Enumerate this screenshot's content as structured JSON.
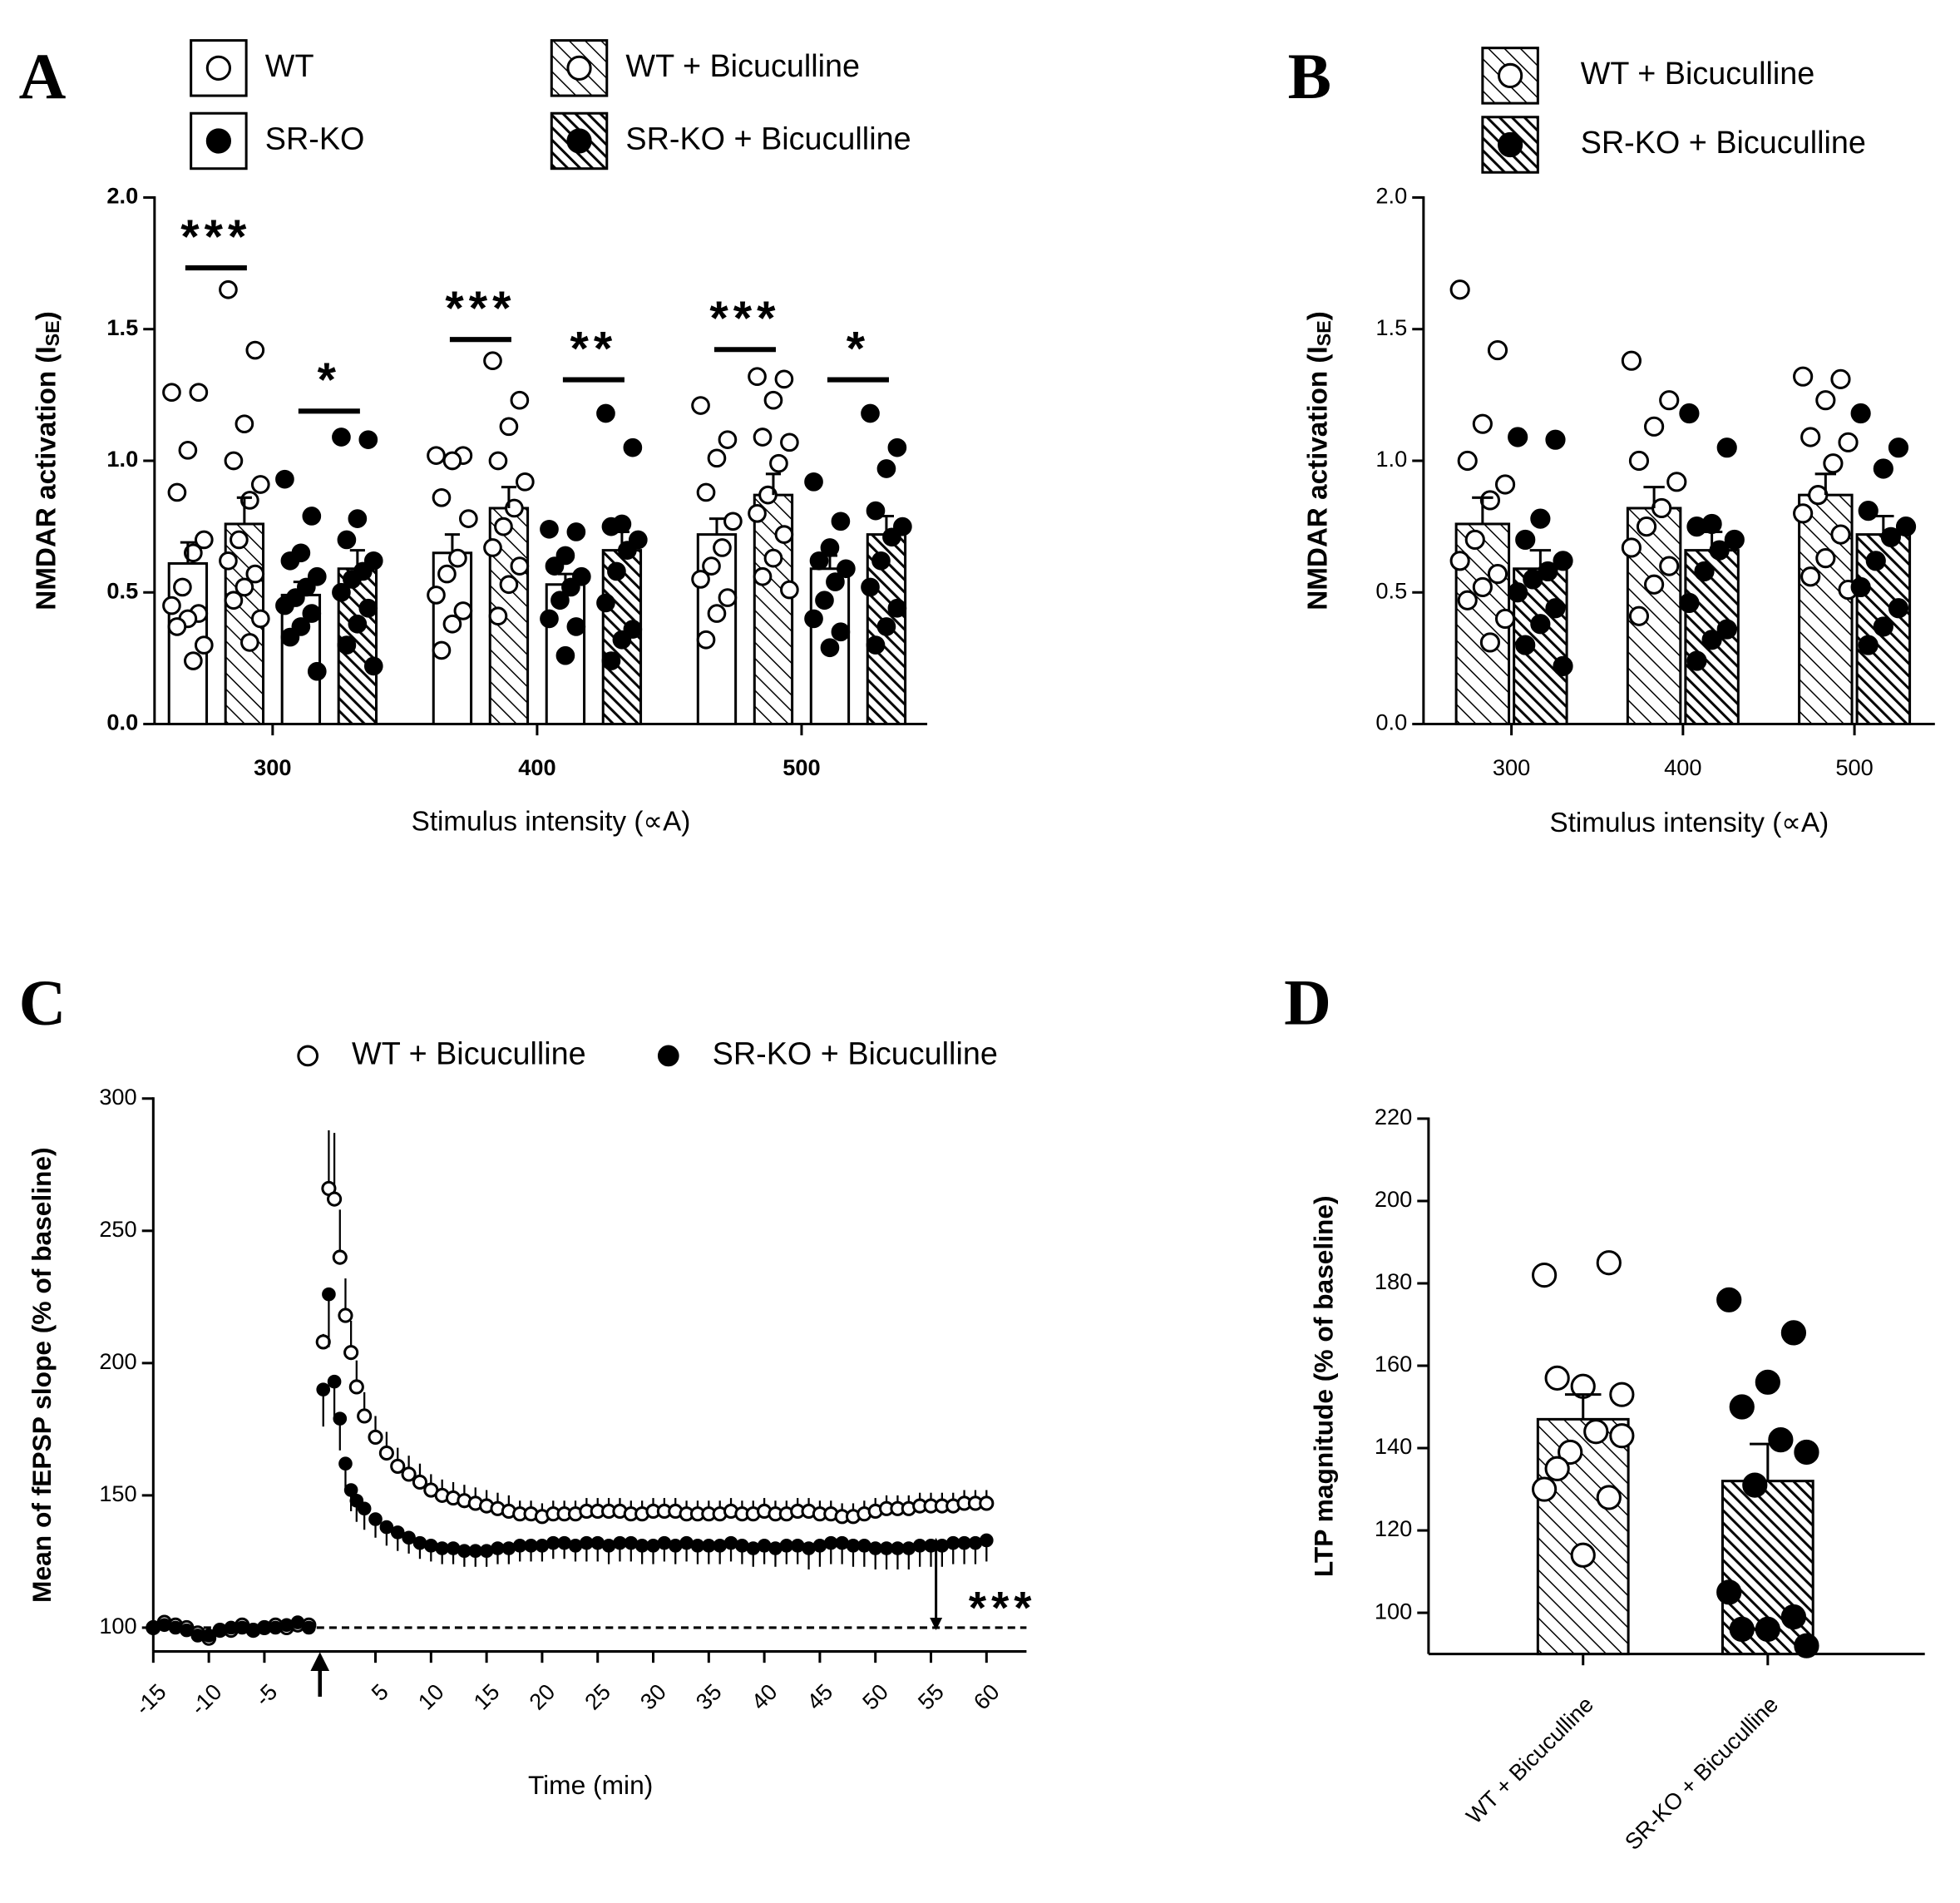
{
  "chart_data": [
    {
      "panel": "A",
      "type": "bar",
      "y_label": {
        "text": "NMDAR activation (I",
        "sub": "SE",
        "end": ")"
      },
      "x_label": "Stimulus intensity (∝A)",
      "categories": [
        "300",
        "400",
        "500"
      ],
      "ylim": [
        0,
        2
      ],
      "yticks": [
        {
          "value": 0,
          "label": "0.0"
        },
        0.5,
        {
          "value": 1,
          "label": "1.0"
        },
        1.5,
        {
          "value": 2,
          "label": "2.0"
        }
      ],
      "series": [
        {
          "name": "WT",
          "fill": "white",
          "marker": "open",
          "values": [
            0.61,
            0.65,
            0.72
          ],
          "errors": [
            0.08,
            0.07,
            0.06
          ],
          "points": [
            [
              1.26,
              1.26,
              1.04,
              0.88,
              0.7,
              0.65,
              0.52,
              0.45,
              0.42,
              0.4,
              0.37,
              0.3,
              0.24
            ],
            [
              1.02,
              1.02,
              1.0,
              0.86,
              0.78,
              0.63,
              0.57,
              0.49,
              0.43,
              0.38,
              0.28
            ],
            [
              1.21,
              1.08,
              1.01,
              0.88,
              0.77,
              0.67,
              0.6,
              0.55,
              0.48,
              0.42,
              0.32
            ]
          ]
        },
        {
          "name": "WT + Bicuculline",
          "fill": "sparse-hatch",
          "marker": "open",
          "values": [
            0.76,
            0.82,
            0.87
          ],
          "errors": [
            0.1,
            0.08,
            0.08
          ],
          "points": [
            [
              1.65,
              1.42,
              1.14,
              1.0,
              0.91,
              0.85,
              0.7,
              0.62,
              0.57,
              0.52,
              0.47,
              0.4,
              0.31
            ],
            [
              1.38,
              1.23,
              1.13,
              1.0,
              0.92,
              0.82,
              0.75,
              0.67,
              0.6,
              0.53,
              0.41
            ],
            [
              1.32,
              1.31,
              1.23,
              1.09,
              1.07,
              0.99,
              0.87,
              0.8,
              0.72,
              0.63,
              0.56,
              0.51
            ]
          ]
        },
        {
          "name": "SR-KO",
          "fill": "white",
          "marker": "filled",
          "values": [
            0.49,
            0.53,
            0.59
          ],
          "errors": [
            0.05,
            0.04,
            0.05
          ],
          "points": [
            [
              0.93,
              0.79,
              0.65,
              0.62,
              0.56,
              0.52,
              0.48,
              0.45,
              0.42,
              0.37,
              0.33,
              0.2
            ],
            [
              0.74,
              0.73,
              0.64,
              0.6,
              0.56,
              0.52,
              0.47,
              0.4,
              0.37,
              0.26
            ],
            [
              0.92,
              0.77,
              0.67,
              0.62,
              0.59,
              0.54,
              0.47,
              0.4,
              0.35,
              0.29
            ]
          ]
        },
        {
          "name": "SR-KO + Bicuculline",
          "fill": "dense-hatch",
          "marker": "filled",
          "values": [
            0.59,
            0.66,
            0.72
          ],
          "errors": [
            0.07,
            0.07,
            0.07
          ],
          "points": [
            [
              1.09,
              1.08,
              0.78,
              0.7,
              0.62,
              0.58,
              0.55,
              0.5,
              0.44,
              0.38,
              0.3,
              0.22
            ],
            [
              1.18,
              1.05,
              0.76,
              0.75,
              0.7,
              0.66,
              0.58,
              0.46,
              0.36,
              0.32,
              0.24
            ],
            [
              1.18,
              1.05,
              0.97,
              0.81,
              0.75,
              0.71,
              0.62,
              0.52,
              0.44,
              0.37,
              0.3
            ]
          ]
        }
      ],
      "annotations": [
        "***",
        "*",
        "***",
        "**",
        "***",
        "*"
      ]
    },
    {
      "panel": "B",
      "type": "bar",
      "y_label": {
        "text": "NMDAR activation (I",
        "sub": "SE",
        "end": ")"
      },
      "x_label": "Stimulus intensity (∝A)",
      "categories": [
        "300",
        "400",
        "500"
      ],
      "ylim": [
        0,
        2
      ],
      "yticks": [
        {
          "value": 0,
          "label": "0.0"
        },
        0.5,
        {
          "value": 1,
          "label": "1.0"
        },
        1.5,
        {
          "value": 2,
          "label": "2.0"
        }
      ],
      "series": [
        {
          "name": "WT + Bicuculline",
          "fill": "sparse-hatch",
          "marker": "open",
          "values": [
            0.76,
            0.82,
            0.87
          ],
          "errors": [
            0.1,
            0.08,
            0.08
          ],
          "points": [
            [
              1.65,
              1.42,
              1.14,
              1.0,
              0.91,
              0.85,
              0.7,
              0.62,
              0.57,
              0.52,
              0.47,
              0.4,
              0.31
            ],
            [
              1.38,
              1.23,
              1.13,
              1.0,
              0.92,
              0.82,
              0.75,
              0.67,
              0.6,
              0.53,
              0.41
            ],
            [
              1.32,
              1.31,
              1.23,
              1.09,
              1.07,
              0.99,
              0.87,
              0.8,
              0.72,
              0.63,
              0.56,
              0.51
            ]
          ]
        },
        {
          "name": "SR-KO + Bicuculline",
          "fill": "dense-hatch",
          "marker": "filled",
          "values": [
            0.59,
            0.66,
            0.72
          ],
          "errors": [
            0.07,
            0.07,
            0.07
          ],
          "points": [
            [
              1.09,
              1.08,
              0.78,
              0.7,
              0.62,
              0.58,
              0.55,
              0.5,
              0.44,
              0.38,
              0.3,
              0.22
            ],
            [
              1.18,
              1.05,
              0.76,
              0.75,
              0.7,
              0.66,
              0.58,
              0.46,
              0.36,
              0.32,
              0.24
            ],
            [
              1.18,
              1.05,
              0.97,
              0.81,
              0.75,
              0.71,
              0.62,
              0.52,
              0.44,
              0.37,
              0.3
            ]
          ]
        }
      ]
    },
    {
      "panel": "C",
      "type": "scatter",
      "y_label": "Mean of fEPSP slope (% of baseline)",
      "x_label": "Time (min)",
      "xlim": [
        -15,
        63.6
      ],
      "xticks": [
        -15,
        -10,
        -5,
        5,
        10,
        15,
        20,
        25,
        30,
        35,
        40,
        45,
        50,
        55,
        60
      ],
      "ylim": [
        91,
        300
      ],
      "yticks": [
        100,
        150,
        200,
        250,
        300
      ],
      "reference_line": 100,
      "stimulus_time": 0,
      "annotation": "***",
      "x": [
        -15,
        -14,
        -13,
        -12,
        -11,
        -10,
        -9,
        -8,
        -7,
        -6,
        -5,
        -4,
        -3,
        -2,
        -1,
        0.3,
        0.8,
        1.3,
        1.8,
        2.3,
        2.8,
        3.3,
        4,
        5,
        6,
        7,
        8,
        9,
        10,
        11,
        12,
        13,
        14,
        15,
        16,
        17,
        18,
        19,
        20,
        21,
        22,
        23,
        24,
        25,
        26,
        27,
        28,
        29,
        30,
        31,
        32,
        33,
        34,
        35,
        36,
        37,
        38,
        39,
        40,
        41,
        42,
        43,
        44,
        45,
        46,
        47,
        48,
        49,
        50,
        51,
        52,
        53,
        54,
        55,
        56,
        57,
        58,
        59,
        60
      ],
      "series": [
        {
          "name": "WT + Bicuculline",
          "marker": "open",
          "values": [
            100,
            102,
            101,
            100,
            98,
            96,
            99,
            99,
            101,
            99,
            100,
            101,
            100,
            101,
            101,
            208,
            266,
            262,
            240,
            218,
            204,
            191,
            180,
            172,
            166,
            161,
            158,
            155,
            152,
            150,
            149,
            148,
            147,
            146,
            145,
            144,
            143,
            143,
            142,
            143,
            143,
            143,
            144,
            144,
            144,
            144,
            143,
            143,
            144,
            144,
            144,
            143,
            143,
            143,
            143,
            144,
            143,
            143,
            144,
            143,
            143,
            144,
            144,
            143,
            143,
            142,
            142,
            143,
            144,
            145,
            145,
            145,
            146,
            146,
            146,
            146,
            147,
            147,
            147
          ],
          "errors": [
            2,
            2,
            2,
            2,
            2,
            2,
            2,
            2,
            2,
            2,
            2,
            2,
            2,
            2,
            2,
            3,
            22,
            25,
            18,
            14,
            12,
            10,
            9,
            8,
            8,
            7,
            7,
            7,
            6,
            6,
            6,
            6,
            6,
            6,
            6,
            6,
            5,
            5,
            5,
            5,
            5,
            5,
            5,
            5,
            5,
            5,
            5,
            5,
            5,
            5,
            5,
            5,
            5,
            5,
            5,
            5,
            5,
            5,
            5,
            5,
            5,
            5,
            5,
            5,
            5,
            5,
            5,
            5,
            5,
            5,
            5,
            5,
            5,
            5,
            5,
            5,
            5,
            5,
            5
          ]
        },
        {
          "name": "SR-KO + Bicuculline",
          "marker": "filled",
          "values": [
            100,
            101,
            100,
            99,
            97,
            97,
            99,
            100,
            100,
            99,
            100,
            100,
            101,
            102,
            100,
            190,
            226,
            193,
            179,
            162,
            152,
            148,
            145,
            141,
            138,
            136,
            134,
            132,
            131,
            130,
            130,
            129,
            129,
            129,
            130,
            130,
            131,
            131,
            131,
            132,
            132,
            131,
            132,
            132,
            131,
            132,
            132,
            131,
            131,
            132,
            131,
            132,
            131,
            131,
            131,
            132,
            131,
            130,
            131,
            130,
            131,
            131,
            130,
            131,
            132,
            132,
            131,
            131,
            130,
            130,
            130,
            130,
            131,
            131,
            131,
            132,
            132,
            132,
            133
          ],
          "errors": [
            2,
            2,
            2,
            2,
            2,
            2,
            2,
            2,
            2,
            2,
            2,
            2,
            2,
            2,
            2,
            14,
            20,
            14,
            12,
            9,
            8,
            8,
            8,
            7,
            7,
            7,
            6,
            6,
            6,
            6,
            6,
            6,
            6,
            6,
            6,
            6,
            6,
            6,
            6,
            6,
            6,
            6,
            7,
            7,
            7,
            7,
            7,
            7,
            7,
            7,
            7,
            7,
            7,
            7,
            7,
            7,
            7,
            7,
            7,
            7,
            7,
            7,
            8,
            8,
            8,
            8,
            8,
            8,
            8,
            8,
            8,
            8,
            8,
            8,
            8,
            8,
            8,
            8,
            8
          ]
        }
      ]
    },
    {
      "panel": "D",
      "type": "bar",
      "y_label": "LTP magnitude (% of baseline)",
      "categories": [
        "WT + Bicuculline",
        "SR-KO + Bicuculline"
      ],
      "ylim": [
        90,
        220
      ],
      "yticks": [
        100,
        120,
        140,
        160,
        180,
        200,
        220
      ],
      "values": [
        147,
        132
      ],
      "errors": [
        6,
        9
      ],
      "fills": [
        "sparse-hatch",
        "dense-hatch"
      ],
      "markers": [
        "open",
        "filled"
      ],
      "points": [
        [
          182,
          185,
          155,
          157,
          143,
          144,
          139,
          130,
          128,
          114,
          135,
          153
        ],
        [
          176,
          168,
          156,
          150,
          139,
          142,
          131,
          105,
          99,
          96,
          96,
          92
        ]
      ]
    }
  ]
}
